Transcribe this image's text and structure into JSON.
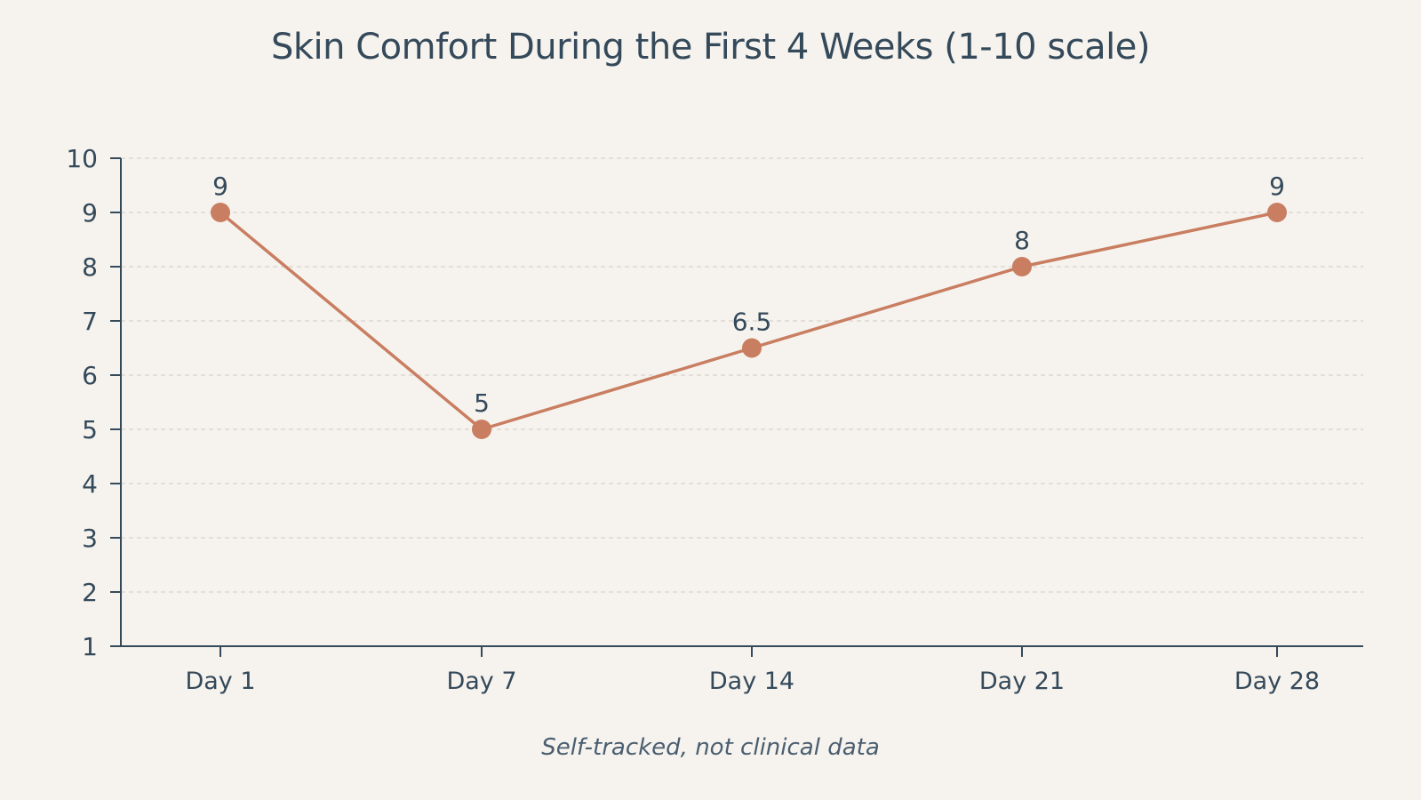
{
  "chart_data": {
    "type": "line",
    "title": "Skin Comfort During the First 4 Weeks (1-10 scale)",
    "note": "Self-tracked, not clinical data",
    "categories": [
      "Day 1",
      "Day 7",
      "Day 14",
      "Day 21",
      "Day 28"
    ],
    "series": [
      {
        "values": [
          9,
          5,
          6.5,
          8,
          9
        ],
        "labels": [
          "9",
          "5",
          "6.5",
          "8",
          "9"
        ]
      }
    ],
    "ylim": [
      1,
      10
    ],
    "yticks": [
      1,
      2,
      3,
      4,
      5,
      6,
      7,
      8,
      9,
      10
    ],
    "grid": true,
    "colors": {
      "line": "#c97e61",
      "axis": "#34495a",
      "grid": "#d8d2ca",
      "text": "#34495a"
    }
  }
}
